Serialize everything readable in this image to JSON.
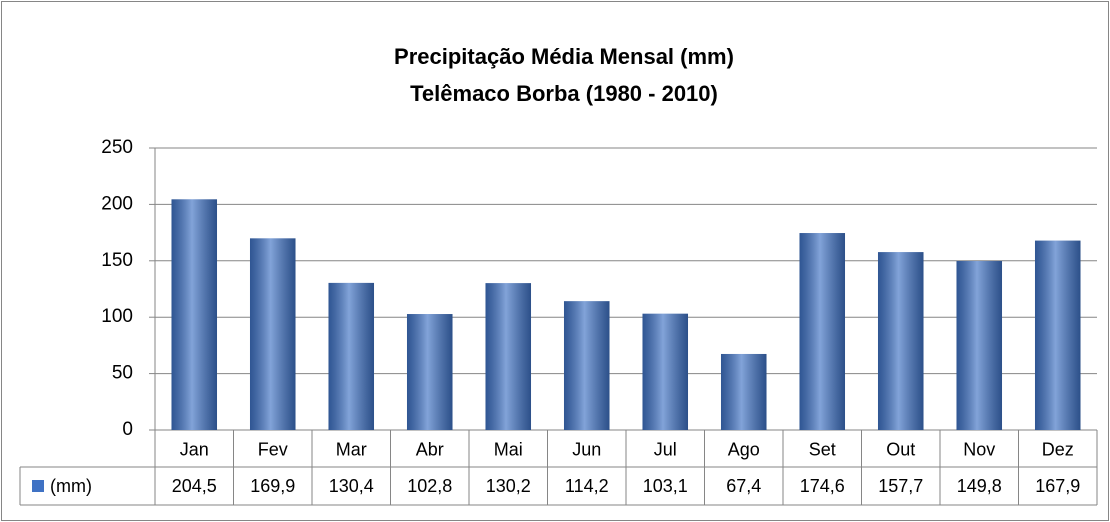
{
  "chart_data": {
    "type": "bar",
    "title": "Precipitação Média Mensal (mm)",
    "subtitle": "Telêmaco Borba (1980 - 2010)",
    "categories": [
      "Jan",
      "Fev",
      "Mar",
      "Abr",
      "Mai",
      "Jun",
      "Jul",
      "Ago",
      "Set",
      "Out",
      "Nov",
      "Dez"
    ],
    "series": [
      {
        "name": "(mm)",
        "color": "#3f72c4",
        "values": [
          204.5,
          169.9,
          130.4,
          102.8,
          130.2,
          114.2,
          103.1,
          67.4,
          174.6,
          157.7,
          149.8,
          167.9
        ],
        "value_labels": [
          "204,5",
          "169,9",
          "130,4",
          "102,8",
          "130,2",
          "114,2",
          "103,1",
          "67,4",
          "174,6",
          "157,7",
          "149,8",
          "167,9"
        ]
      }
    ],
    "ylim": [
      0,
      250
    ],
    "yticks": [
      0,
      50,
      100,
      150,
      200,
      250
    ],
    "grid": true
  }
}
